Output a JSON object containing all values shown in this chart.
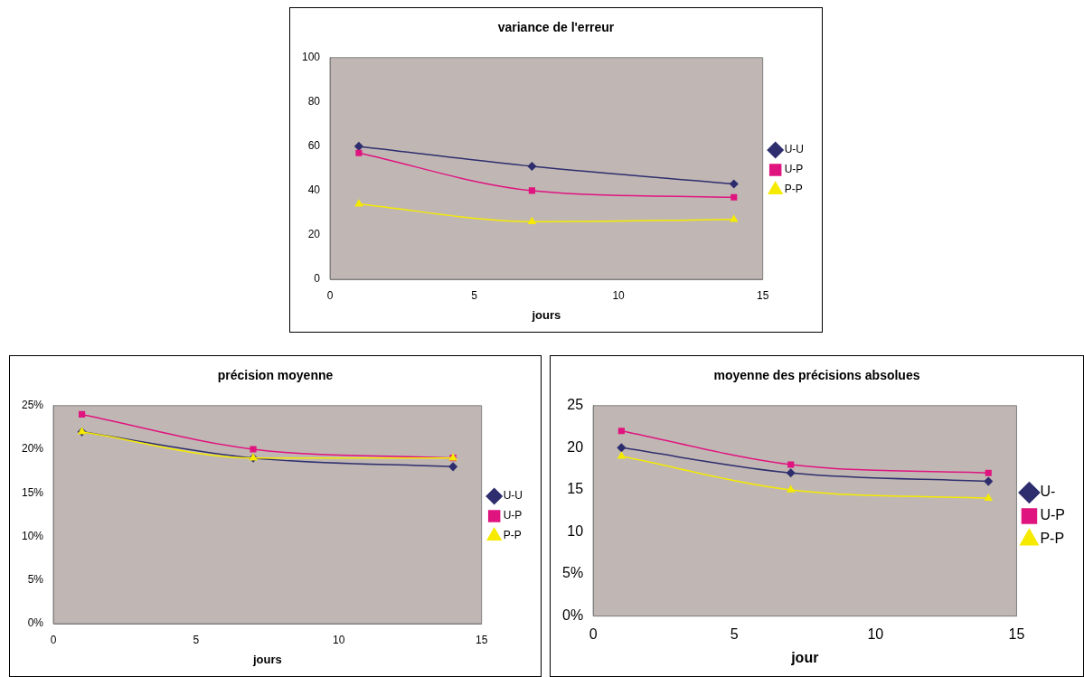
{
  "chart_data": [
    {
      "type": "line",
      "title": "variance de l'erreur",
      "xlabel": "jours",
      "x": [
        1,
        7,
        14
      ],
      "xlim": [
        0,
        15
      ],
      "xticks": [
        0,
        5,
        10,
        15
      ],
      "ylim": [
        0,
        100
      ],
      "yticks": [
        0,
        20,
        40,
        60,
        80,
        100
      ],
      "legend": "right",
      "grid": false,
      "series": [
        {
          "name": "U-U",
          "color": "#2e2e6e",
          "marker": "diamond",
          "values": [
            60,
            51,
            43
          ]
        },
        {
          "name": "U-P",
          "color": "#e0147f",
          "marker": "square",
          "values": [
            57,
            40,
            37
          ]
        },
        {
          "name": "P-P",
          "color": "#f5ea00",
          "marker": "triangle",
          "values": [
            34,
            26,
            27
          ]
        }
      ]
    },
    {
      "type": "line",
      "title": "précision moyenne",
      "xlabel": "jours",
      "x": [
        1,
        7,
        14
      ],
      "xlim": [
        0,
        15
      ],
      "xticks": [
        0,
        5,
        10,
        15
      ],
      "ylim": [
        0,
        25
      ],
      "yticks": [
        {
          "value": 0,
          "label": "0%"
        },
        {
          "value": 5,
          "label": "5%"
        },
        {
          "value": 10,
          "label": "10%"
        },
        {
          "value": 15,
          "label": "15%"
        },
        {
          "value": 20,
          "label": "20%"
        },
        {
          "value": 25,
          "label": "25%"
        }
      ],
      "legend": "right",
      "grid": false,
      "series": [
        {
          "name": "U-U",
          "color": "#2e2e6e",
          "marker": "diamond",
          "values": [
            22,
            19,
            18
          ]
        },
        {
          "name": "U-P",
          "color": "#e0147f",
          "marker": "square",
          "values": [
            24,
            20,
            19
          ]
        },
        {
          "name": "P-P",
          "color": "#f5ea00",
          "marker": "triangle",
          "values": [
            22,
            19,
            19
          ]
        }
      ]
    },
    {
      "type": "line",
      "title": "moyenne des précisions absolues",
      "xlabel": "jour",
      "x": [
        1,
        7,
        14
      ],
      "xlim": [
        0,
        15
      ],
      "xticks": [
        0,
        5,
        10,
        15
      ],
      "ylim": [
        0,
        25
      ],
      "yticks": [
        {
          "value": 0,
          "label": "0%"
        },
        {
          "value": 5,
          "label": "5%"
        },
        10,
        15,
        20,
        25
      ],
      "legend": "right",
      "grid": false,
      "series": [
        {
          "name": "U-",
          "color": "#2e2e6e",
          "marker": "diamond",
          "values": [
            20,
            17,
            16
          ]
        },
        {
          "name": "U-P",
          "color": "#e0147f",
          "marker": "square",
          "values": [
            22,
            18,
            17
          ]
        },
        {
          "name": "P-P",
          "color": "#f5ea00",
          "marker": "triangle",
          "values": [
            19,
            15,
            14
          ]
        }
      ]
    }
  ]
}
